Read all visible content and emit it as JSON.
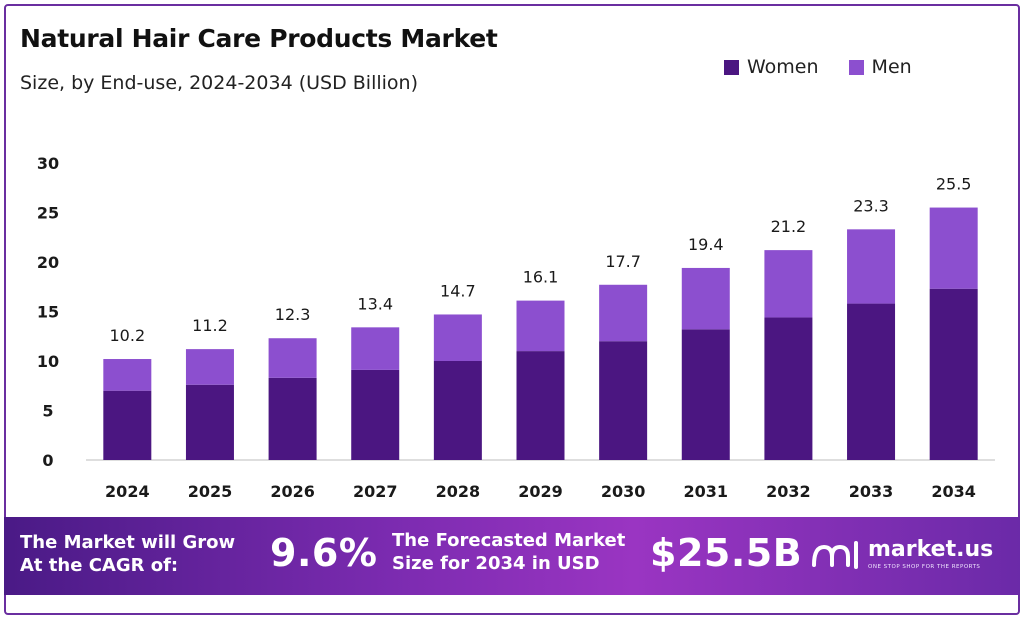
{
  "header": {
    "title": "Natural Hair Care Products Market",
    "subtitle": "Size, by End-use, 2024-2034 (USD Billion)"
  },
  "legend": {
    "items": [
      {
        "label": "Women",
        "color": "#4b1681"
      },
      {
        "label": "Men",
        "color": "#8c4fcf"
      }
    ]
  },
  "chart_data": {
    "type": "bar",
    "stacked": true,
    "categories": [
      "2024",
      "2025",
      "2026",
      "2027",
      "2028",
      "2029",
      "2030",
      "2031",
      "2032",
      "2033",
      "2034"
    ],
    "series": [
      {
        "name": "Women",
        "color": "#4b1681",
        "values": [
          7.0,
          7.6,
          8.3,
          9.1,
          10.0,
          11.0,
          12.0,
          13.2,
          14.4,
          15.8,
          17.3
        ]
      },
      {
        "name": "Men",
        "color": "#8c4fcf",
        "values": [
          3.2,
          3.6,
          4.0,
          4.3,
          4.7,
          5.1,
          5.7,
          6.2,
          6.8,
          7.5,
          8.2
        ]
      }
    ],
    "totals": [
      10.2,
      11.2,
      12.3,
      13.4,
      14.7,
      16.1,
      17.7,
      19.4,
      21.2,
      23.3,
      25.5
    ],
    "total_labels": [
      "10.2",
      "11.2",
      "12.3",
      "13.4",
      "14.7",
      "16.1",
      "17.7",
      "19.4",
      "21.2",
      "23.3",
      "25.5"
    ],
    "yticks": [
      0,
      5,
      10,
      15,
      20,
      25,
      30
    ],
    "ylim": [
      0,
      30
    ],
    "grid": false,
    "legend_position": "top-right"
  },
  "banner": {
    "cagr_text_line1": "The Market will Grow",
    "cagr_text_line2": "At the CAGR of:",
    "cagr_value": "9.6%",
    "forecast_text_line1": "The Forecasted Market",
    "forecast_text_line2": "Size for 2034 in USD",
    "forecast_value": "$25.5B",
    "brand_name": "market.us",
    "brand_tagline": "ONE STOP SHOP FOR THE REPORTS"
  }
}
